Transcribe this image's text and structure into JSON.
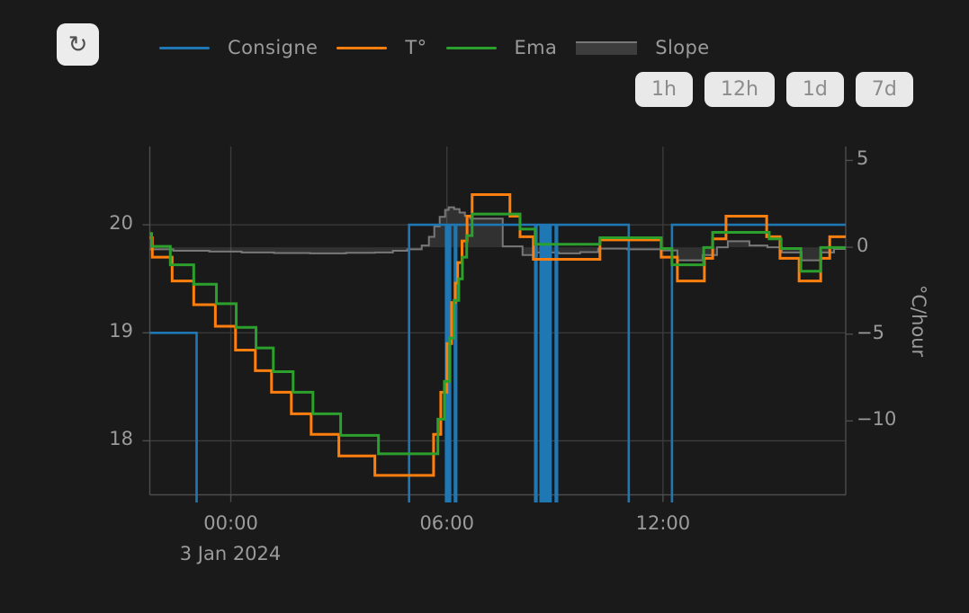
{
  "app": {
    "background": "#1a1a1a"
  },
  "toolbar": {
    "refresh_icon": "↻",
    "range_buttons": [
      "1h",
      "12h",
      "1d",
      "7d"
    ]
  },
  "legend": [
    {
      "label": "Consigne",
      "type": "line",
      "color": "#1f77b4"
    },
    {
      "label": "T°",
      "type": "line",
      "color": "#ff7f0e"
    },
    {
      "label": "Ema",
      "type": "line",
      "color": "#2ca02c"
    },
    {
      "label": "Slope",
      "type": "area",
      "color": "#787878"
    }
  ],
  "colors": {
    "background": "#1a1a1a",
    "grid": "#3d3d3d",
    "axis_line": "#4d4d4d",
    "tick_text": "#9b9b9b",
    "consigne": "#1f77b4",
    "temperature": "#ff7f0e",
    "ema": "#2ca02c",
    "slope_line": "#787878",
    "slope_fill": "rgba(130,130,130,0.22)",
    "button_bg": "#e9e9e9",
    "button_text": "#8c8c8c"
  },
  "chart_data": {
    "type": "line",
    "x_unit": "hours_from_midnight_3_jan_2024",
    "x_range": [
      -2.25,
      17.075
    ],
    "x_ticks": [
      {
        "t": 0,
        "label": "00:00"
      },
      {
        "t": 6,
        "label": "06:00"
      },
      {
        "t": 12,
        "label": "12:00"
      }
    ],
    "x_date_label": "3 Jan 2024",
    "y_left": {
      "range": [
        17.5,
        20.725
      ],
      "ticks": [
        {
          "v": 20,
          "label": "20"
        },
        {
          "v": 19,
          "label": "19"
        },
        {
          "v": 18,
          "label": "18"
        }
      ]
    },
    "y_right": {
      "title": "°C/hour",
      "range": [
        -14.25,
        5.8
      ],
      "ticks": [
        {
          "v": 5,
          "label": "5"
        },
        {
          "v": 0,
          "label": "0"
        },
        {
          "v": -5,
          "label": "−5"
        },
        {
          "v": -10,
          "label": "−10"
        }
      ]
    },
    "series": [
      {
        "name": "Consigne",
        "axis": "left",
        "style": "step",
        "color": "#1f77b4",
        "width": 2.6,
        "note": "null value = setpoint below visible range",
        "points": [
          [
            -2.25,
            19
          ],
          [
            -0.95,
            null
          ],
          [
            4.95,
            20
          ],
          [
            5.975,
            null
          ],
          [
            6.02,
            20
          ],
          [
            6.05,
            null
          ],
          [
            6.09,
            20
          ],
          [
            6.22,
            null
          ],
          [
            6.26,
            20
          ],
          [
            8.45,
            null
          ],
          [
            8.49,
            20
          ],
          [
            8.6,
            null
          ],
          [
            8.64,
            20
          ],
          [
            8.68,
            null
          ],
          [
            8.72,
            20
          ],
          [
            8.76,
            null
          ],
          [
            8.8,
            20
          ],
          [
            8.84,
            null
          ],
          [
            8.88,
            20
          ],
          [
            9.02,
            null
          ],
          [
            9.06,
            20
          ],
          [
            11.05,
            null
          ],
          [
            12.25,
            20
          ],
          [
            17.07,
            20
          ]
        ]
      },
      {
        "name": "T°",
        "axis": "left",
        "style": "step",
        "color": "#ff7f0e",
        "width": 3,
        "points": [
          [
            -2.25,
            19.88
          ],
          [
            -2.18,
            19.7
          ],
          [
            -1.63,
            19.48
          ],
          [
            -1.03,
            19.26
          ],
          [
            -0.43,
            19.06
          ],
          [
            0.13,
            18.84
          ],
          [
            0.68,
            18.65
          ],
          [
            1.13,
            18.45
          ],
          [
            1.68,
            18.25
          ],
          [
            2.23,
            18.06
          ],
          [
            3.0,
            17.86
          ],
          [
            4.0,
            17.68
          ],
          [
            5.63,
            18.06
          ],
          [
            5.83,
            18.45
          ],
          [
            6.0,
            18.9
          ],
          [
            6.13,
            19.28
          ],
          [
            6.23,
            19.46
          ],
          [
            6.3,
            19.65
          ],
          [
            6.42,
            19.85
          ],
          [
            6.56,
            20.08
          ],
          [
            6.7,
            20.28
          ],
          [
            7.75,
            20.08
          ],
          [
            8.03,
            19.89
          ],
          [
            8.4,
            19.68
          ],
          [
            10.25,
            19.86
          ],
          [
            11.95,
            19.7
          ],
          [
            12.4,
            19.48
          ],
          [
            13.15,
            19.69
          ],
          [
            13.38,
            19.87
          ],
          [
            13.75,
            20.08
          ],
          [
            14.88,
            19.89
          ],
          [
            15.25,
            19.69
          ],
          [
            15.78,
            19.48
          ],
          [
            16.38,
            19.69
          ],
          [
            16.63,
            19.89
          ],
          [
            17.07,
            19.89
          ]
        ]
      },
      {
        "name": "Ema",
        "axis": "left",
        "style": "step",
        "color": "#2ca02c",
        "width": 3,
        "points": [
          [
            -2.25,
            19.92
          ],
          [
            -2.2,
            19.8
          ],
          [
            -1.68,
            19.63
          ],
          [
            -1.03,
            19.45
          ],
          [
            -0.4,
            19.27
          ],
          [
            0.15,
            19.05
          ],
          [
            0.7,
            18.86
          ],
          [
            1.18,
            18.64
          ],
          [
            1.73,
            18.45
          ],
          [
            2.28,
            18.25
          ],
          [
            3.05,
            18.05
          ],
          [
            4.1,
            17.88
          ],
          [
            5.75,
            18.2
          ],
          [
            5.93,
            18.55
          ],
          [
            6.08,
            18.95
          ],
          [
            6.2,
            19.3
          ],
          [
            6.33,
            19.5
          ],
          [
            6.43,
            19.7
          ],
          [
            6.55,
            19.9
          ],
          [
            6.7,
            20.1
          ],
          [
            8.03,
            19.96
          ],
          [
            8.45,
            19.82
          ],
          [
            10.25,
            19.88
          ],
          [
            11.95,
            19.78
          ],
          [
            12.25,
            19.63
          ],
          [
            13.13,
            19.79
          ],
          [
            13.38,
            19.93
          ],
          [
            14.95,
            19.87
          ],
          [
            15.28,
            19.78
          ],
          [
            15.83,
            19.57
          ],
          [
            16.38,
            19.79
          ],
          [
            17.07,
            19.78
          ]
        ]
      },
      {
        "name": "Slope",
        "axis": "right",
        "style": "step-area",
        "color": "#787878",
        "fill": "rgba(130,130,130,0.22)",
        "width": 2,
        "baseline": 0,
        "points": [
          [
            -2.25,
            -0.12
          ],
          [
            -1.6,
            -0.2
          ],
          [
            -0.6,
            -0.25
          ],
          [
            0.3,
            -0.3
          ],
          [
            1.2,
            -0.33
          ],
          [
            2.2,
            -0.35
          ],
          [
            3.2,
            -0.32
          ],
          [
            4.0,
            -0.3
          ],
          [
            4.5,
            -0.2
          ],
          [
            4.9,
            -0.12
          ],
          [
            5.3,
            0.1
          ],
          [
            5.5,
            0.6
          ],
          [
            5.65,
            1.2
          ],
          [
            5.8,
            1.75
          ],
          [
            5.95,
            2.15
          ],
          [
            6.05,
            2.3
          ],
          [
            6.2,
            2.2
          ],
          [
            6.35,
            2.0
          ],
          [
            6.5,
            1.8
          ],
          [
            6.65,
            1.65
          ],
          [
            7.55,
            0.05
          ],
          [
            8.1,
            -0.45
          ],
          [
            8.5,
            -0.3
          ],
          [
            9.1,
            -0.35
          ],
          [
            9.7,
            -0.28
          ],
          [
            10.2,
            -0.08
          ],
          [
            11.0,
            -0.12
          ],
          [
            12.0,
            -0.18
          ],
          [
            12.4,
            -0.75
          ],
          [
            13.1,
            -0.45
          ],
          [
            13.5,
            0.0
          ],
          [
            13.8,
            0.35
          ],
          [
            14.4,
            0.1
          ],
          [
            14.9,
            0.0
          ],
          [
            15.3,
            -0.3
          ],
          [
            15.85,
            -0.75
          ],
          [
            16.4,
            -0.3
          ],
          [
            16.75,
            -0.1
          ],
          [
            17.07,
            -0.05
          ]
        ]
      }
    ]
  }
}
